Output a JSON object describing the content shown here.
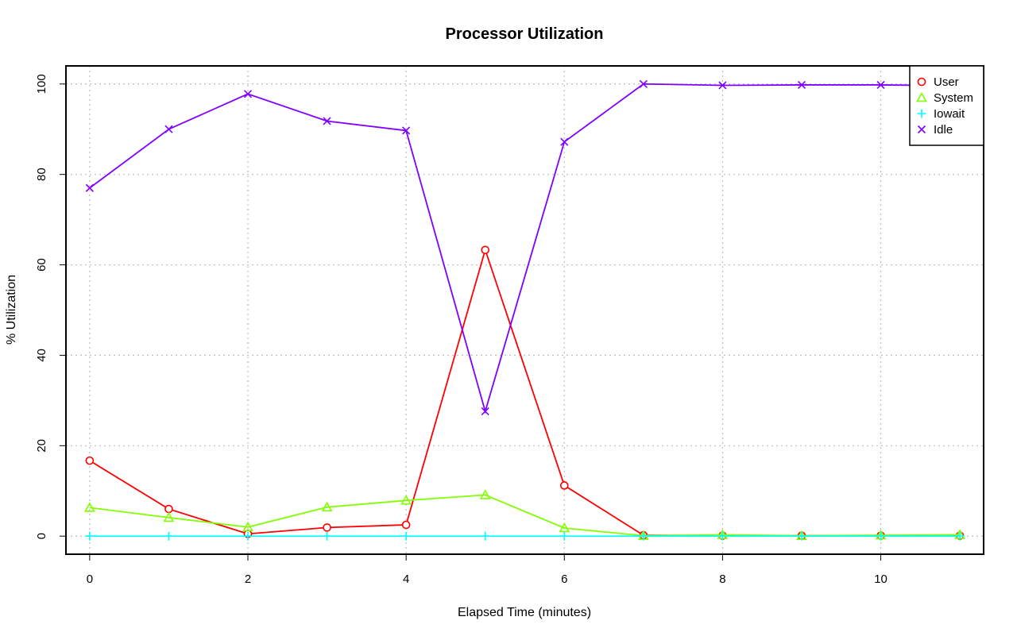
{
  "chart_data": {
    "type": "line",
    "title": "Processor Utilization",
    "xlabel": "Elapsed Time (minutes)",
    "ylabel": "% Utilization",
    "xlim": [
      -0.3,
      11.3
    ],
    "ylim": [
      -4,
      104
    ],
    "xticks": [
      0,
      2,
      4,
      6,
      8,
      10
    ],
    "yticks": [
      0,
      20,
      40,
      60,
      80,
      100
    ],
    "grid": true,
    "legend_position": "top-right",
    "x": [
      0,
      1,
      2,
      3,
      4,
      5,
      6,
      7,
      8,
      9,
      10,
      11
    ],
    "series": [
      {
        "name": "User",
        "color": "#ff0000",
        "marker": "circle",
        "values": [
          16.7,
          6.0,
          0.5,
          1.9,
          2.5,
          63.3,
          11.2,
          0.2,
          0.1,
          0.1,
          0.1,
          0.1
        ]
      },
      {
        "name": "System",
        "color": "#80ff00",
        "marker": "triangle",
        "values": [
          6.3,
          4.1,
          2.0,
          6.4,
          7.9,
          9.1,
          1.8,
          0.1,
          0.3,
          0.1,
          0.2,
          0.3
        ]
      },
      {
        "name": "Iowait",
        "color": "#00ffff",
        "marker": "plus",
        "values": [
          0,
          0,
          0,
          0,
          0,
          0,
          0,
          0,
          0,
          0,
          0,
          0
        ]
      },
      {
        "name": "Idle",
        "color": "#8000ff",
        "marker": "cross",
        "values": [
          77.0,
          90.0,
          97.8,
          91.8,
          89.7,
          27.6,
          87.2,
          100.0,
          99.7,
          99.8,
          99.8,
          99.6
        ]
      }
    ]
  }
}
